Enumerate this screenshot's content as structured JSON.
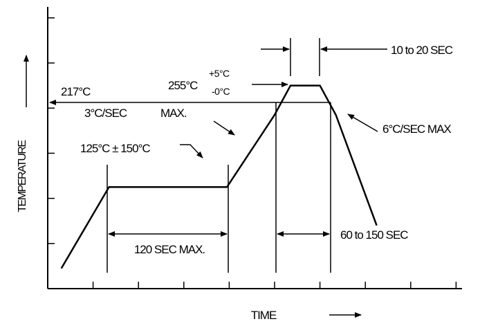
{
  "axes": {
    "x_label": "TIME",
    "y_label": "TEMPERATURE",
    "x_ticks": 10,
    "y_ticks": 6
  },
  "profile": {
    "points": [
      [
        0.3,
        0.45
      ],
      [
        1.35,
        2.25
      ],
      [
        3.95,
        2.25
      ],
      [
        5.0,
        3.85
      ],
      [
        5.35,
        4.5
      ],
      [
        6.0,
        4.5
      ],
      [
        6.35,
        3.85
      ],
      [
        7.25,
        1.4
      ]
    ],
    "reference_level": 3.85
  },
  "labels": {
    "liquidus_temp": "217°C",
    "peak_temp": "255°C",
    "peak_tol_plus": "+5°C",
    "peak_tol_minus": "-0°C",
    "ramp_up": "3°C/SEC",
    "ramp_up_max": "MAX.",
    "soak": "125°C ± 150°C",
    "soak_duration": "120 SEC MAX.",
    "peak_duration": "10 to 20 SEC",
    "liquidus_duration": "60 to 150 SEC",
    "ramp_down": "6°C/SEC MAX"
  }
}
